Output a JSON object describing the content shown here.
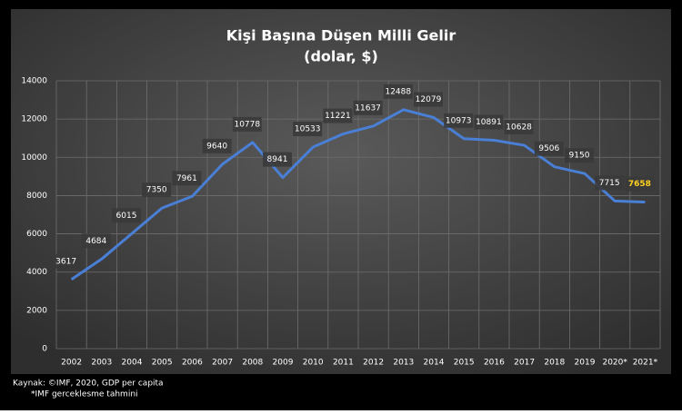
{
  "chart_data": {
    "type": "line",
    "title": "Kişi Başına Düşen Milli Gelir",
    "subtitle": "(dolar, $)",
    "categories": [
      "2002",
      "2003",
      "2004",
      "2005",
      "2006",
      "2007",
      "2008",
      "2009",
      "2010",
      "2011",
      "2012",
      "2013",
      "2014",
      "2015",
      "2016",
      "2017",
      "2018",
      "2019",
      "2020*",
      "2021*"
    ],
    "series": [
      {
        "name": "Kişi Başına Düşen Milli Gelir",
        "color": "#4a7fd6",
        "values": [
          3617,
          4684,
          6015,
          7350,
          7961,
          9640,
          10778,
          8941,
          10533,
          11221,
          11637,
          12488,
          12079,
          10973,
          10891,
          10628,
          9506,
          9150,
          7715,
          7658
        ]
      }
    ],
    "label_colors": [
      "#ffffff",
      "#ffffff",
      "#ffffff",
      "#ffffff",
      "#ffffff",
      "#ffffff",
      "#ffffff",
      "#ffffff",
      "#ffffff",
      "#ffffff",
      "#ffffff",
      "#ffffff",
      "#ffffff",
      "#ffffff",
      "#ffffff",
      "#ffffff",
      "#ffffff",
      "#ffffff",
      "#ffffff",
      "#ffd21f"
    ],
    "ylim": [
      0,
      14000
    ],
    "yticks": [
      0,
      2000,
      4000,
      6000,
      8000,
      10000,
      12000,
      14000
    ],
    "grid": true,
    "notes": [
      "Kaynak: ©IMF, 2020, GDP per capita",
      "*IMF gerceklesme tahmini"
    ]
  }
}
